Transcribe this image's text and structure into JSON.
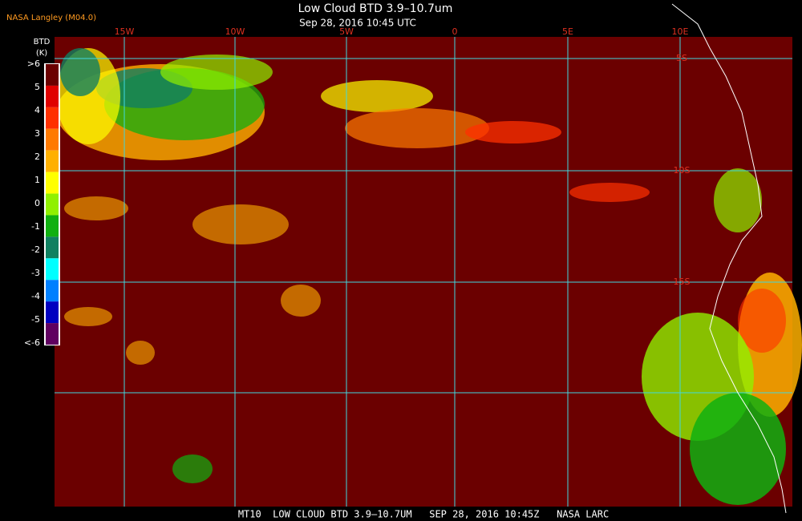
{
  "header": {
    "source": "NASA Langley (M04.0)",
    "title": "Low Cloud BTD 3.9–10.7um",
    "subtitle": "Sep 28, 2016 10:45 UTC"
  },
  "legend": {
    "title": "BTD",
    "unit": "(K)",
    "items": [
      {
        "label": ">6",
        "color": "#6b0000"
      },
      {
        "label": "5",
        "color": "#e00000"
      },
      {
        "label": "4",
        "color": "#ff3000"
      },
      {
        "label": "3",
        "color": "#ff7a00"
      },
      {
        "label": "2",
        "color": "#ffb000"
      },
      {
        "label": "1",
        "color": "#ffff00"
      },
      {
        "label": "0",
        "color": "#90f000"
      },
      {
        "label": "-1",
        "color": "#10b010"
      },
      {
        "label": "-2",
        "color": "#108060"
      },
      {
        "label": "-3",
        "color": "#00ffff"
      },
      {
        "label": "-4",
        "color": "#0080ff"
      },
      {
        "label": "-5",
        "color": "#0000c0"
      },
      {
        "label": "<-6",
        "color": "#600060"
      }
    ]
  },
  "map": {
    "lon_labels": [
      "15W",
      "10W",
      "5W",
      "0",
      "5E",
      "10E"
    ],
    "lat_labels": [
      "5S",
      "10S",
      "15S"
    ]
  },
  "footer": "MT10  LOW CLOUD BTD 3.9–10.7UM   SEP 28, 2016 10:45Z   NASA LARC"
}
